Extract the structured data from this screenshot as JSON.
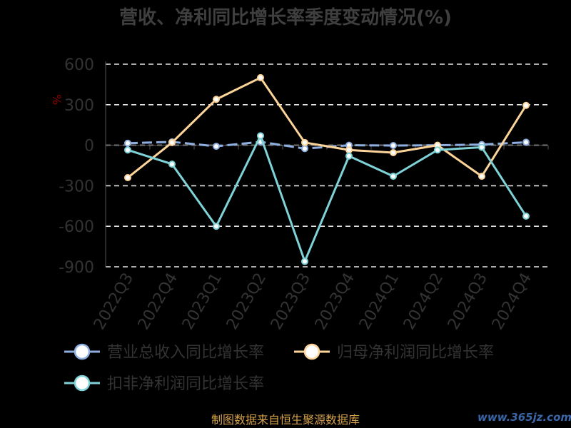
{
  "chart_data": {
    "type": "line",
    "title": "营收、净利同比增长率季度变动情况(%)",
    "unit_label": "%",
    "categories": [
      "2022Q3",
      "2022Q4",
      "2023Q1",
      "2023Q2",
      "2023Q3",
      "2023Q4",
      "2024Q1",
      "2024Q2",
      "2024Q3",
      "2024Q4"
    ],
    "ylim": [
      -900,
      600
    ],
    "yticks": [
      600,
      300,
      0,
      -300,
      -600,
      -900
    ],
    "grid": true,
    "legend_position": "bottom",
    "series": [
      {
        "name": "营业总收入同比增长率",
        "color": "#8eaee0",
        "dashed": true,
        "values": [
          15,
          25,
          -8,
          25,
          -25,
          0,
          -2,
          0,
          5,
          22
        ]
      },
      {
        "name": "归母净利润同比增长率",
        "color": "#fcd49a",
        "dashed": false,
        "values": [
          -240,
          20,
          340,
          500,
          20,
          -35,
          -55,
          0,
          -230,
          295
        ]
      },
      {
        "name": "扣非净利润同比增长率",
        "color": "#7fd3d8",
        "dashed": false,
        "values": [
          -35,
          -140,
          -600,
          70,
          -860,
          -80,
          -230,
          -35,
          -15,
          -525
        ]
      }
    ]
  },
  "footer": {
    "source": "制图数据来自恒生聚源数据库",
    "watermark": "www.365jz.com"
  }
}
